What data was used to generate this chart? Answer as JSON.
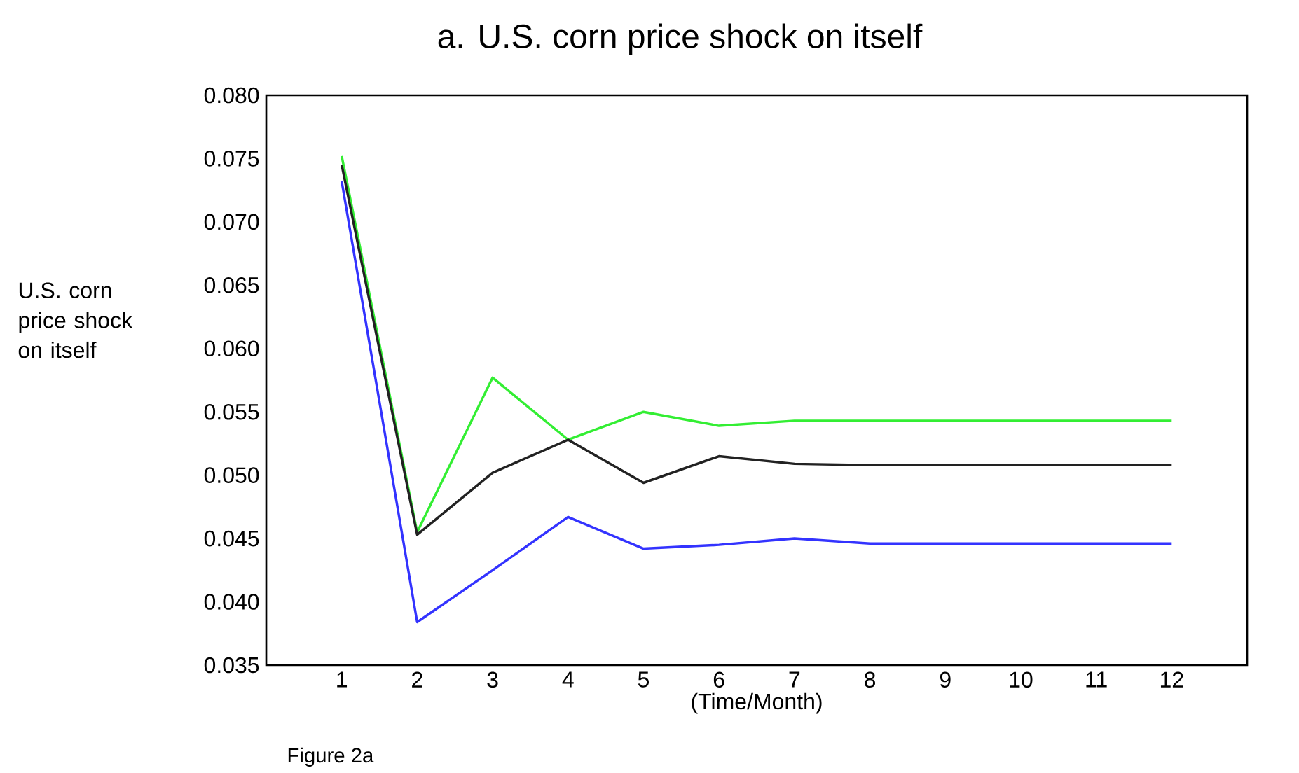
{
  "chart_data": {
    "type": "line",
    "title": "a. U.S. corn price shock on itself",
    "xlabel": "(Time/Month)",
    "ylabel": "U.S. corn price shock on itself",
    "x": [
      1,
      2,
      3,
      4,
      5,
      6,
      7,
      8,
      9,
      10,
      11,
      12
    ],
    "xlim": [
      0,
      13
    ],
    "xticks": [
      1,
      2,
      3,
      4,
      5,
      6,
      7,
      8,
      9,
      10,
      11,
      12
    ],
    "ylim": [
      0.035,
      0.08
    ],
    "yticks": [
      {
        "value": 0.035,
        "label": "0.035"
      },
      {
        "value": 0.04,
        "label": "0.040"
      },
      {
        "value": 0.045,
        "label": "0.045"
      },
      {
        "value": 0.05,
        "label": "0.050"
      },
      {
        "value": 0.055,
        "label": "0.055"
      },
      {
        "value": 0.06,
        "label": "0.060"
      },
      {
        "value": 0.065,
        "label": "0.065"
      },
      {
        "value": 0.07,
        "label": "0.070"
      },
      {
        "value": 0.075,
        "label": "0.075"
      },
      {
        "value": 0.08,
        "label": "0.080"
      }
    ],
    "series": [
      {
        "color": "#33ee33",
        "values": [
          0.0752,
          0.0455,
          0.0577,
          0.0528,
          0.055,
          0.0539,
          0.0543,
          0.0543,
          0.0543,
          0.0543,
          0.0543,
          0.0543
        ]
      },
      {
        "color": "#222222",
        "values": [
          0.0745,
          0.0453,
          0.0502,
          0.0528,
          0.0494,
          0.0515,
          0.0509,
          0.0508,
          0.0508,
          0.0508,
          0.0508,
          0.0508
        ]
      },
      {
        "color": "#3333ff",
        "values": [
          0.0732,
          0.0384,
          0.0425,
          0.0467,
          0.0442,
          0.0445,
          0.045,
          0.0446,
          0.0446,
          0.0446,
          0.0446,
          0.0446
        ]
      }
    ],
    "annotations": [
      "Figure 2a"
    ]
  }
}
